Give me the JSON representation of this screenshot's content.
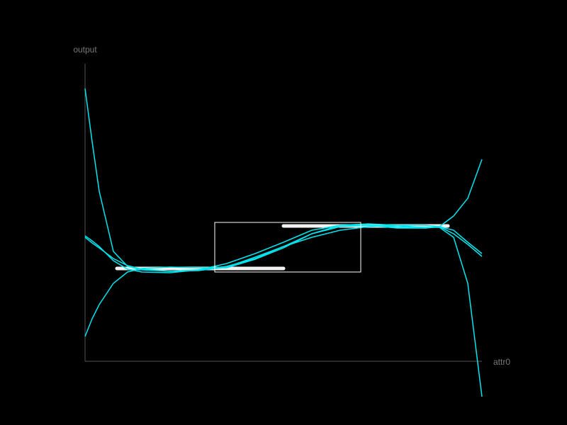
{
  "chart_data": {
    "type": "line",
    "x_label": "attr0",
    "y_label": "output",
    "xlim": [
      0,
      560
    ],
    "ylim": [
      0,
      420
    ],
    "axis_color": "#555555",
    "x": [
      0,
      10,
      20,
      40,
      60,
      80,
      120,
      160,
      200,
      240,
      280,
      320,
      360,
      400,
      440,
      480,
      500,
      520,
      540,
      560
    ],
    "series": [
      {
        "color": "#00e5ee",
        "values": [
          385,
          310,
          240,
          155,
          134,
          129,
          127,
          128,
          133,
          147,
          162,
          180,
          190,
          192,
          190,
          189,
          189,
          175,
          110,
          -50
        ]
      },
      {
        "color": "#00e5ee",
        "values": [
          35,
          60,
          80,
          110,
          126,
          131,
          133,
          132,
          132,
          144,
          160,
          180,
          192,
          194,
          192,
          188,
          190,
          205,
          230,
          285
        ]
      },
      {
        "color": "#00e5ee",
        "values": [
          175,
          167,
          160,
          145,
          135,
          130,
          127,
          129,
          134,
          145,
          162,
          175,
          185,
          190,
          192,
          192,
          190,
          180,
          165,
          148
        ]
      },
      {
        "color": "#00e5ee",
        "values": [
          177,
          170,
          162,
          142,
          130,
          126,
          125,
          129,
          138,
          152,
          168,
          185,
          192,
          192,
          188,
          188,
          190,
          185,
          168,
          152
        ]
      }
    ],
    "segments_color": "#ffffff",
    "segments": [
      {
        "x": [
          45,
          280
        ],
        "y": 131
      },
      {
        "x": [
          280,
          512
        ],
        "y": 191
      }
    ],
    "box_color": "#ffffff",
    "box": {
      "x": [
        183,
        389
      ],
      "y": [
        126,
        196
      ]
    }
  }
}
